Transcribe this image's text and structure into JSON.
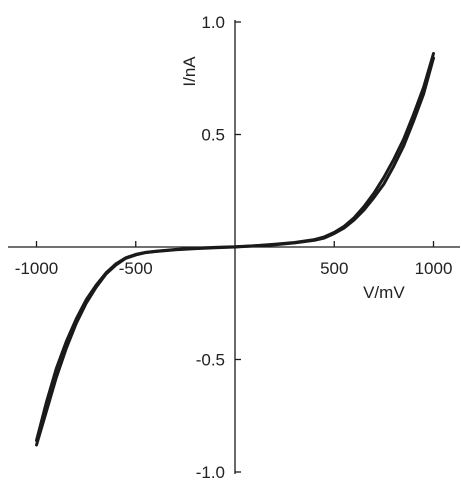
{
  "chart_data": {
    "type": "line",
    "title": "",
    "xlabel": "V/mV",
    "ylabel": "I/nA",
    "xlim": [
      -1000,
      1000
    ],
    "ylim": [
      -1.0,
      1.0
    ],
    "grid": false,
    "legend": "none",
    "x_ticks": [
      {
        "value": -1000,
        "label": "-1000"
      },
      {
        "value": -500,
        "label": "-500"
      },
      {
        "value": 500,
        "label": "500"
      },
      {
        "value": 1000,
        "label": "1000"
      }
    ],
    "y_ticks": [
      {
        "value": 1.0,
        "label": "1.0"
      },
      {
        "value": 0.5,
        "label": "0.5"
      },
      {
        "value": -0.5,
        "label": "-0.5"
      },
      {
        "value": -1.0,
        "label": "-1.0"
      }
    ],
    "line_color": "#1a1a1a",
    "series": [
      {
        "x": [
          -1000,
          -950,
          -900,
          -850,
          -800,
          -750,
          -700,
          -650,
          -600,
          -550,
          -500,
          -450,
          -400,
          -300,
          -200,
          -100,
          0,
          100,
          200,
          300,
          400,
          450,
          500,
          550,
          600,
          650,
          700,
          750,
          800,
          850,
          900,
          950,
          1000
        ],
        "y": [
          -0.88,
          -0.73,
          -0.58,
          -0.45,
          -0.34,
          -0.25,
          -0.18,
          -0.12,
          -0.08,
          -0.05,
          -0.035,
          -0.025,
          -0.02,
          -0.012,
          -0.007,
          -0.003,
          0.0,
          0.005,
          0.01,
          0.018,
          0.03,
          0.04,
          0.06,
          0.085,
          0.12,
          0.165,
          0.22,
          0.28,
          0.36,
          0.45,
          0.56,
          0.68,
          0.84
        ]
      },
      {
        "x": [
          -1000,
          -950,
          -900,
          -850,
          -800,
          -750,
          -700,
          -650,
          -600,
          -550,
          -500,
          -450,
          -400,
          -300,
          -200,
          -100,
          0,
          100,
          200,
          300,
          400,
          450,
          500,
          550,
          600,
          650,
          700,
          750,
          800,
          850,
          900,
          950,
          1000
        ],
        "y": [
          -0.86,
          -0.69,
          -0.54,
          -0.42,
          -0.32,
          -0.235,
          -0.17,
          -0.115,
          -0.075,
          -0.048,
          -0.033,
          -0.024,
          -0.019,
          -0.011,
          -0.006,
          -0.002,
          0.001,
          0.006,
          0.012,
          0.02,
          0.033,
          0.045,
          0.065,
          0.092,
          0.13,
          0.18,
          0.24,
          0.31,
          0.39,
          0.48,
          0.59,
          0.71,
          0.86
        ]
      }
    ]
  }
}
